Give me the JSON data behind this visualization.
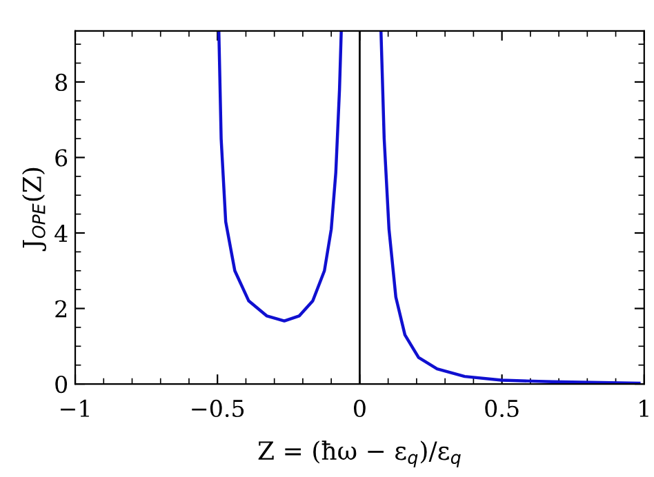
{
  "chart_data": {
    "type": "line",
    "xlabel": "Z = (ħω − ε$_{q}$)/ε$_{q}$",
    "ylabel": "J$_{OPE}$(Z)",
    "x": [
      -0.495,
      -0.487,
      -0.471,
      -0.439,
      -0.39,
      -0.326,
      -0.265,
      -0.213,
      -0.165,
      -0.124,
      -0.1,
      -0.084,
      -0.071,
      -0.065,
      0,
      0.075,
      0.086,
      0.103,
      0.127,
      0.159,
      0.207,
      0.272,
      0.369,
      0.498,
      0.676,
      0.982
    ],
    "series": [
      {
        "color": "#1010d0",
        "values": [
          9.3,
          6.5,
          4.3,
          3.0,
          2.2,
          1.8,
          1.67,
          1.8,
          2.2,
          3.0,
          4.1,
          5.6,
          7.8,
          9.3,
          null,
          9.3,
          6.5,
          4.1,
          2.3,
          1.3,
          0.7,
          0.4,
          0.2,
          0.1,
          0.06,
          0.02
        ]
      }
    ],
    "xlim": [
      -1,
      1
    ],
    "ylim": [
      0,
      9.35
    ],
    "xticks": [
      {
        "value": -1,
        "label": "−1"
      },
      {
        "value": -0.5,
        "label": "−0.5"
      },
      0,
      0.5,
      1
    ],
    "yticks": [
      0,
      2,
      4,
      6,
      8
    ],
    "ref_lines": [
      {
        "axis": "x",
        "value": 0,
        "color": "#000000"
      }
    ],
    "grid": false,
    "legend": false,
    "marker": "none",
    "line_style": "solid"
  }
}
